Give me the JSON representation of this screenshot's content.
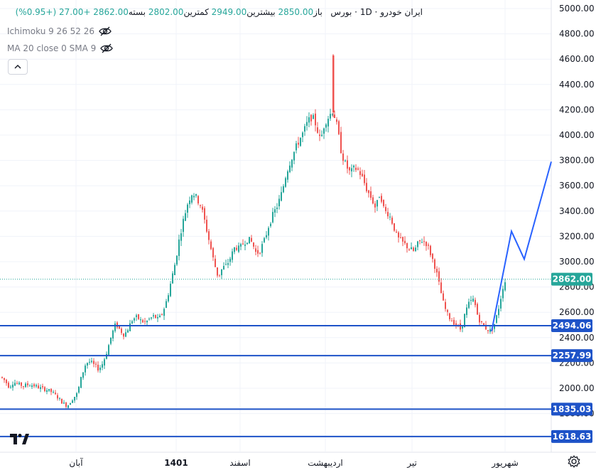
{
  "legend": {
    "symbol": "ایران خودرو",
    "separator": "·",
    "interval": "1D",
    "exchange": "بورس",
    "open_label": "باز",
    "open": "2850.00",
    "high_label": "بیشترین",
    "high": "2949.00",
    "low_label": "کمترین",
    "low": "2802.00",
    "close_label": "بسته",
    "close": "2862.00",
    "change": "+27.00",
    "change_pct": "(+0.95%)"
  },
  "indicators": [
    {
      "label": "Ichimoku 9 26 52 26",
      "visible": false
    },
    {
      "label": "MA 20 close 0 SMA 9",
      "visible": false
    }
  ],
  "colors": {
    "up": "#26a69a",
    "down": "#ef5350",
    "level_line": "#1e53c8",
    "projection": "#2962ff",
    "last_price_bg": "#26a69a",
    "axis_text": "#131722"
  },
  "chart_data": {
    "type": "candlestick",
    "y_axis": {
      "min": 1400,
      "max": 5000,
      "ticks": [
        1800,
        2000,
        2200,
        2400,
        2600,
        2800,
        3000,
        3200,
        3400,
        3600,
        3800,
        4000,
        4200,
        4400,
        4600,
        4800,
        5000
      ],
      "tick_labels": [
        "1800.00",
        "2000.00",
        "2200.00",
        "2400.00",
        "2600.00",
        "2800.00",
        "3000.00",
        "3200.00",
        "3400.00",
        "3600.00",
        "3800.00",
        "4000.00",
        "4200.00",
        "4400.00",
        "4600.00",
        "4800.00",
        "5000.00"
      ]
    },
    "x_labels": [
      "آبان",
      "1401",
      "اسفند",
      "اردیبهشت",
      "تیر",
      "شهریور"
    ],
    "x_label_bold": [
      "1401"
    ],
    "last_price": {
      "value": 2862,
      "label": "2862.00"
    },
    "horizontal_levels": [
      {
        "value": 2494.06,
        "label": "2494.06"
      },
      {
        "value": 2257.99,
        "label": "2257.99"
      },
      {
        "value": 1835.03,
        "label": "1835.03"
      },
      {
        "value": 1618.63,
        "label": "1618.63"
      }
    ],
    "price_path": [
      [
        0,
        2090
      ],
      [
        6,
        2060
      ],
      [
        12,
        2010
      ],
      [
        18,
        2050
      ],
      [
        25,
        2030
      ],
      [
        32,
        2020
      ],
      [
        40,
        2030
      ],
      [
        48,
        2020
      ],
      [
        56,
        2000
      ],
      [
        64,
        1990
      ],
      [
        72,
        1970
      ],
      [
        80,
        1930
      ],
      [
        88,
        1880
      ],
      [
        94,
        1860
      ],
      [
        100,
        1910
      ],
      [
        108,
        1960
      ],
      [
        114,
        2100
      ],
      [
        120,
        2200
      ],
      [
        126,
        2210
      ],
      [
        132,
        2180
      ],
      [
        138,
        2150
      ],
      [
        144,
        2200
      ],
      [
        150,
        2300
      ],
      [
        156,
        2420
      ],
      [
        162,
        2510
      ],
      [
        168,
        2460
      ],
      [
        174,
        2420
      ],
      [
        180,
        2480
      ],
      [
        186,
        2550
      ],
      [
        192,
        2560
      ],
      [
        198,
        2530
      ],
      [
        204,
        2520
      ],
      [
        210,
        2550
      ],
      [
        216,
        2570
      ],
      [
        222,
        2540
      ],
      [
        228,
        2600
      ],
      [
        234,
        2700
      ],
      [
        240,
        2850
      ],
      [
        246,
        3000
      ],
      [
        252,
        3200
      ],
      [
        258,
        3350
      ],
      [
        264,
        3480
      ],
      [
        270,
        3550
      ],
      [
        276,
        3500
      ],
      [
        282,
        3440
      ],
      [
        288,
        3300
      ],
      [
        294,
        3150
      ],
      [
        300,
        3000
      ],
      [
        306,
        2880
      ],
      [
        312,
        2950
      ],
      [
        318,
        2970
      ],
      [
        324,
        3040
      ],
      [
        330,
        3120
      ],
      [
        336,
        3100
      ],
      [
        342,
        3150
      ],
      [
        348,
        3180
      ],
      [
        354,
        3150
      ],
      [
        360,
        3060
      ],
      [
        366,
        3100
      ],
      [
        372,
        3180
      ],
      [
        378,
        3300
      ],
      [
        384,
        3380
      ],
      [
        390,
        3450
      ],
      [
        396,
        3550
      ],
      [
        402,
        3700
      ],
      [
        408,
        3800
      ],
      [
        414,
        3880
      ],
      [
        420,
        3960
      ],
      [
        426,
        4020
      ],
      [
        432,
        4100
      ],
      [
        438,
        4150
      ],
      [
        444,
        4080
      ],
      [
        450,
        3950
      ],
      [
        456,
        4100
      ],
      [
        462,
        4150
      ],
      [
        468,
        4200
      ],
      [
        474,
        4050
      ],
      [
        480,
        3850
      ],
      [
        486,
        3760
      ],
      [
        492,
        3700
      ],
      [
        498,
        3740
      ],
      [
        504,
        3720
      ],
      [
        510,
        3650
      ],
      [
        516,
        3560
      ],
      [
        522,
        3500
      ],
      [
        528,
        3420
      ],
      [
        534,
        3550
      ],
      [
        540,
        3400
      ],
      [
        546,
        3380
      ],
      [
        552,
        3300
      ],
      [
        558,
        3190
      ],
      [
        564,
        3160
      ],
      [
        570,
        3130
      ],
      [
        576,
        3100
      ],
      [
        582,
        3080
      ],
      [
        588,
        3150
      ],
      [
        594,
        3170
      ],
      [
        600,
        3140
      ],
      [
        606,
        3050
      ],
      [
        612,
        2950
      ],
      [
        618,
        2800
      ],
      [
        624,
        2650
      ],
      [
        630,
        2570
      ],
      [
        636,
        2530
      ],
      [
        642,
        2500
      ],
      [
        648,
        2460
      ],
      [
        654,
        2600
      ],
      [
        660,
        2680
      ],
      [
        666,
        2700
      ],
      [
        672,
        2560
      ],
      [
        678,
        2500
      ],
      [
        684,
        2470
      ],
      [
        690,
        2450
      ],
      [
        696,
        2520
      ],
      [
        702,
        2660
      ],
      [
        708,
        2830
      ],
      [
        713,
        2862
      ]
    ],
    "spike_candle": {
      "x": 468,
      "open": 4180,
      "high": 4640,
      "low": 4140,
      "close": 4630
    },
    "projection_path": [
      [
        692,
        2450
      ],
      [
        720,
        3240
      ],
      [
        738,
        3020
      ],
      [
        776,
        3790
      ]
    ]
  }
}
